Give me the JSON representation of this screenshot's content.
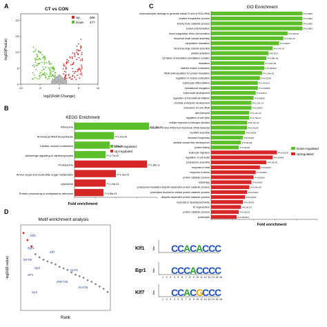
{
  "panels": {
    "A": "A",
    "B": "B",
    "C": "C",
    "D": "D"
  },
  "volcano": {
    "title": "CT vs CON",
    "xlabel": "log2(Fold Change)",
    "ylabel": "-log10(Pvalue)",
    "legend": [
      {
        "label": "Up",
        "count": "306",
        "color": "#d62728"
      },
      {
        "label": "Down",
        "count": "477",
        "color": "#5cbf2a"
      }
    ],
    "x_ticks": [
      "-10",
      "-5",
      "0",
      "5",
      "10"
    ],
    "y_ticks": [
      "0",
      "5",
      "10",
      "15",
      "20"
    ],
    "xlim": [
      -10,
      10
    ],
    "ylim": [
      0,
      22
    ]
  },
  "chart_data": [
    {
      "type": "bar",
      "title": "KEGG Enrichment",
      "xlabel": "Fold enrichment",
      "orientation": "horizontal",
      "xlim": [
        0,
        4
      ],
      "legend": [
        {
          "label": "Down-regulated",
          "color": "#5cbf2a"
        },
        {
          "label": "Up-regulated",
          "color": "#d62728"
        }
      ],
      "bars": [
        {
          "label": "Ribosome",
          "value": 3.6,
          "p": "P=1.79e-74",
          "group": "down"
        },
        {
          "label": "Aminoacyl-tRNA biosynthesis",
          "value": 1.9,
          "p": "P=1.41e-04",
          "group": "down"
        },
        {
          "label": "Cardiac muscle contraction",
          "value": 1.7,
          "p": "P=1.29e-02",
          "group": "down"
        },
        {
          "label": "Adrenergic signaling in cardiomyocytes",
          "value": 1.5,
          "p": "P=2.77e-02",
          "group": "down"
        },
        {
          "label": "Proteasome",
          "value": 3.5,
          "p": "P=1.84e-11",
          "group": "up"
        },
        {
          "label": "Amino sugar and nucleotide sugar metabolism",
          "value": 2.0,
          "p": "P=1.02e-02",
          "group": "up"
        },
        {
          "label": "Lysosome",
          "value": 1.5,
          "p": "P=1.13e-03",
          "group": "up"
        },
        {
          "label": "Protein processing in endoplasmic reticulum",
          "value": 1.4,
          "p": "P=3.39e-03",
          "group": "up"
        }
      ]
    },
    {
      "type": "bar",
      "title": "GO Enrichment",
      "xlabel": "Fold enrichment",
      "orientation": "horizontal",
      "xlim": [
        0,
        5
      ],
      "legend": [
        {
          "label": "Down-regulated",
          "color": "#5cbf2a"
        },
        {
          "label": "Upregulated",
          "color": "#d62728"
        }
      ],
      "bars": [
        {
          "label": "endonucleolytic cleavage to generate mature 5'-end of SSU-rRNA",
          "value": 4.3,
          "p": "P=0.0000",
          "group": "down"
        },
        {
          "label": "creatine biosynthetic process",
          "value": 4.3,
          "p": "P=0.0000",
          "group": "down"
        },
        {
          "label": "ketone body catabolic process",
          "value": 4.3,
          "p": "P=0.0000",
          "group": "down"
        },
        {
          "label": "protein polymerization",
          "value": 4.3,
          "p": "P=0.0000",
          "group": "down"
        },
        {
          "label": "blood coagulation, fibrin clot formation",
          "value": 3.6,
          "p": "P=0.00129",
          "group": "down"
        },
        {
          "label": "ribosomal small subunit assembly",
          "value": 3.4,
          "p": "P=1.56e-12",
          "group": "down"
        },
        {
          "label": "cytoplasmic translation",
          "value": 3.2,
          "p": "P=0.00027",
          "group": "down"
        },
        {
          "label": "ribosomal large subunit assembly",
          "value": 2.9,
          "p": "P=1.47e-07",
          "group": "down"
        },
        {
          "label": "platelet activation",
          "value": 2.7,
          "p": "P=0.0017",
          "group": "down"
        },
        {
          "label": "formation of translation preinitiation complex",
          "value": 2.6,
          "p": "P=3.88e-05",
          "group": "down"
        },
        {
          "label": "translation",
          "value": 2.5,
          "p": "P=1.32e-68",
          "group": "down"
        },
        {
          "label": "skeletal muscle contraction",
          "value": 2.5,
          "p": "P=0.000433",
          "group": "down"
        },
        {
          "label": "tRNA aminoacylation for protein translation",
          "value": 2.4,
          "p": "P=1.29e-05",
          "group": "down"
        },
        {
          "label": "regulation of muscle contraction",
          "value": 2.3,
          "p": "P=0.00238",
          "group": "down"
        },
        {
          "label": "erythrocyte differentiation",
          "value": 2.2,
          "p": "P=1.93e-04",
          "group": "down"
        },
        {
          "label": "translational elongation",
          "value": 2.2,
          "p": "P=0.000355",
          "group": "down"
        },
        {
          "label": "erythrocyte development",
          "value": 2.1,
          "p": "P=0.00214",
          "group": "down"
        },
        {
          "label": "regulation of translational initiation",
          "value": 2.0,
          "p": "P=0.00285",
          "group": "down"
        },
        {
          "label": "chordate embryonic development",
          "value": 1.9,
          "p": "P=1.23e-14",
          "group": "down"
        },
        {
          "label": "maturation of LSU-rRNA",
          "value": 1.9,
          "p": "P=0.00393",
          "group": "down"
        },
        {
          "label": "lipid transport",
          "value": 1.8,
          "p": "P=1.12e-03",
          "group": "down"
        },
        {
          "label": "regulation of cell cycle",
          "value": 1.8,
          "p": "P=2.75e-07",
          "group": "down"
        },
        {
          "label": "cellular response to estrogen stimulus",
          "value": 1.7,
          "p": "P=8.31e-03",
          "group": "down"
        },
        {
          "label": "maturation of SSU-rRNA from tricistronic rRNA transcript",
          "value": 1.7,
          "p": "P=0.00143",
          "group": "down"
        },
        {
          "label": "myofibril assembly",
          "value": 1.6,
          "p": "P=0.00205",
          "group": "down"
        },
        {
          "label": "ribosome biogenesis",
          "value": 1.5,
          "p": "P=0.00115",
          "group": "down"
        },
        {
          "label": "skeletal muscle fiber development",
          "value": 1.4,
          "p": "P=0.00193",
          "group": "down"
        },
        {
          "label": "protein folding",
          "value": 1.3,
          "p": "P=0.00123",
          "group": "down"
        },
        {
          "label": "leukocyte migration",
          "value": 3.1,
          "p": "P=0.00129",
          "group": "up"
        },
        {
          "label": "regulation of cell death",
          "value": 2.9,
          "p": "P=0.00404",
          "group": "up"
        },
        {
          "label": "proteasome assembly",
          "value": 2.6,
          "p": "P=0.00102",
          "group": "up"
        },
        {
          "label": "response to heat",
          "value": 2.3,
          "p": "P=0.00437",
          "group": "up"
        },
        {
          "label": "response to stress",
          "value": 2.1,
          "p": "P=0.00463",
          "group": "up"
        },
        {
          "label": "protein catabolic process",
          "value": 2.0,
          "p": "P=0.00264",
          "group": "up"
        },
        {
          "label": "autophagy",
          "value": 1.9,
          "p": "P=0.00301",
          "group": "up"
        },
        {
          "label": "proteasome-mediated ubiquitin-dependent protein catabolic process",
          "value": 1.8,
          "p": "P=3.64e-08",
          "group": "up"
        },
        {
          "label": "proteolysis involved in cellular protein catabolic process",
          "value": 1.7,
          "p": "P=0.00116",
          "group": "up"
        },
        {
          "label": "ubiquitin-dependent protein catabolic process",
          "value": 1.6,
          "p": "P=0.00124",
          "group": "up"
        },
        {
          "label": "response to lipopolysaccharide",
          "value": 1.5,
          "p": "P=0.00433",
          "group": "up"
        },
        {
          "label": "fin regeneration",
          "value": 1.4,
          "p": "P=0.00131",
          "group": "up"
        },
        {
          "label": "protein catabolic process",
          "value": 1.3,
          "p": "P=0.00103",
          "group": "up"
        },
        {
          "label": "proteolysis",
          "value": 1.2,
          "p": "P=0.000404",
          "group": "up"
        }
      ]
    },
    {
      "type": "scatter",
      "title": "Motif enrichment analysis",
      "xlabel": "Rank",
      "ylabel": "-log10(E-value)",
      "labels": [
        {
          "label": "Klf1",
          "rank": 1
        },
        {
          "label": "Egr1",
          "rank": 2
        },
        {
          "label": "Klf7",
          "rank": 3
        },
        {
          "label": "NFYB",
          "rank": 4
        },
        {
          "label": "Sp3",
          "rank": 5
        },
        {
          "label": "SP1",
          "rank": 6
        },
        {
          "label": "ZNF740",
          "rank": 7
        },
        {
          "label": "KLF5",
          "rank": 8
        },
        {
          "label": "KLF16",
          "rank": 9
        },
        {
          "label": "Sp4",
          "rank": 10
        }
      ],
      "points": [
        {
          "x": 1,
          "y": 9.5,
          "color": "#d62728"
        },
        {
          "x": 2,
          "y": 8.6,
          "color": "#d62728"
        },
        {
          "x": 3,
          "y": 7.8,
          "color": "#d62728"
        },
        {
          "x": 4,
          "y": 6.8,
          "color": "#888888"
        },
        {
          "x": 5,
          "y": 6.4,
          "color": "#888888"
        },
        {
          "x": 6,
          "y": 6.1,
          "color": "#888888"
        },
        {
          "x": 7,
          "y": 5.9,
          "color": "#888888"
        },
        {
          "x": 8,
          "y": 5.7,
          "color": "#888888"
        },
        {
          "x": 9,
          "y": 5.5,
          "color": "#888888"
        },
        {
          "x": 10,
          "y": 5.2,
          "color": "#888888"
        },
        {
          "x": 11,
          "y": 5.0,
          "color": "#888888"
        },
        {
          "x": 12,
          "y": 4.8,
          "color": "#888888"
        },
        {
          "x": 13,
          "y": 4.5,
          "color": "#888888"
        },
        {
          "x": 14,
          "y": 4.2,
          "color": "#888888"
        },
        {
          "x": 15,
          "y": 4.0,
          "color": "#888888"
        },
        {
          "x": 16,
          "y": 3.8,
          "color": "#888888"
        },
        {
          "x": 17,
          "y": 3.5,
          "color": "#888888"
        },
        {
          "x": 18,
          "y": 3.3,
          "color": "#888888"
        },
        {
          "x": 19,
          "y": 3.0,
          "color": "#888888"
        },
        {
          "x": 20,
          "y": 2.7,
          "color": "#888888"
        },
        {
          "x": 21,
          "y": 2.4,
          "color": "#888888"
        },
        {
          "x": 22,
          "y": 2.0,
          "color": "#888888"
        }
      ]
    }
  ],
  "motifs": {
    "ylabel": "bits",
    "positions": [
      "1",
      "2",
      "3",
      "4",
      "5",
      "6",
      "7",
      "8",
      "9",
      "10",
      "11",
      "12",
      "13",
      "14",
      "15",
      "16"
    ],
    "logos": [
      {
        "name": "Klf1",
        "sequence": "CCACACCC"
      },
      {
        "name": "Egr1",
        "sequence": "CCCACCCC"
      },
      {
        "name": "Klf7",
        "sequence": "CCACGCCC"
      }
    ],
    "colors": {
      "A": "#2ca02c",
      "C": "#1f4fbf",
      "G": "#f0a500",
      "T": "#d62728"
    }
  }
}
